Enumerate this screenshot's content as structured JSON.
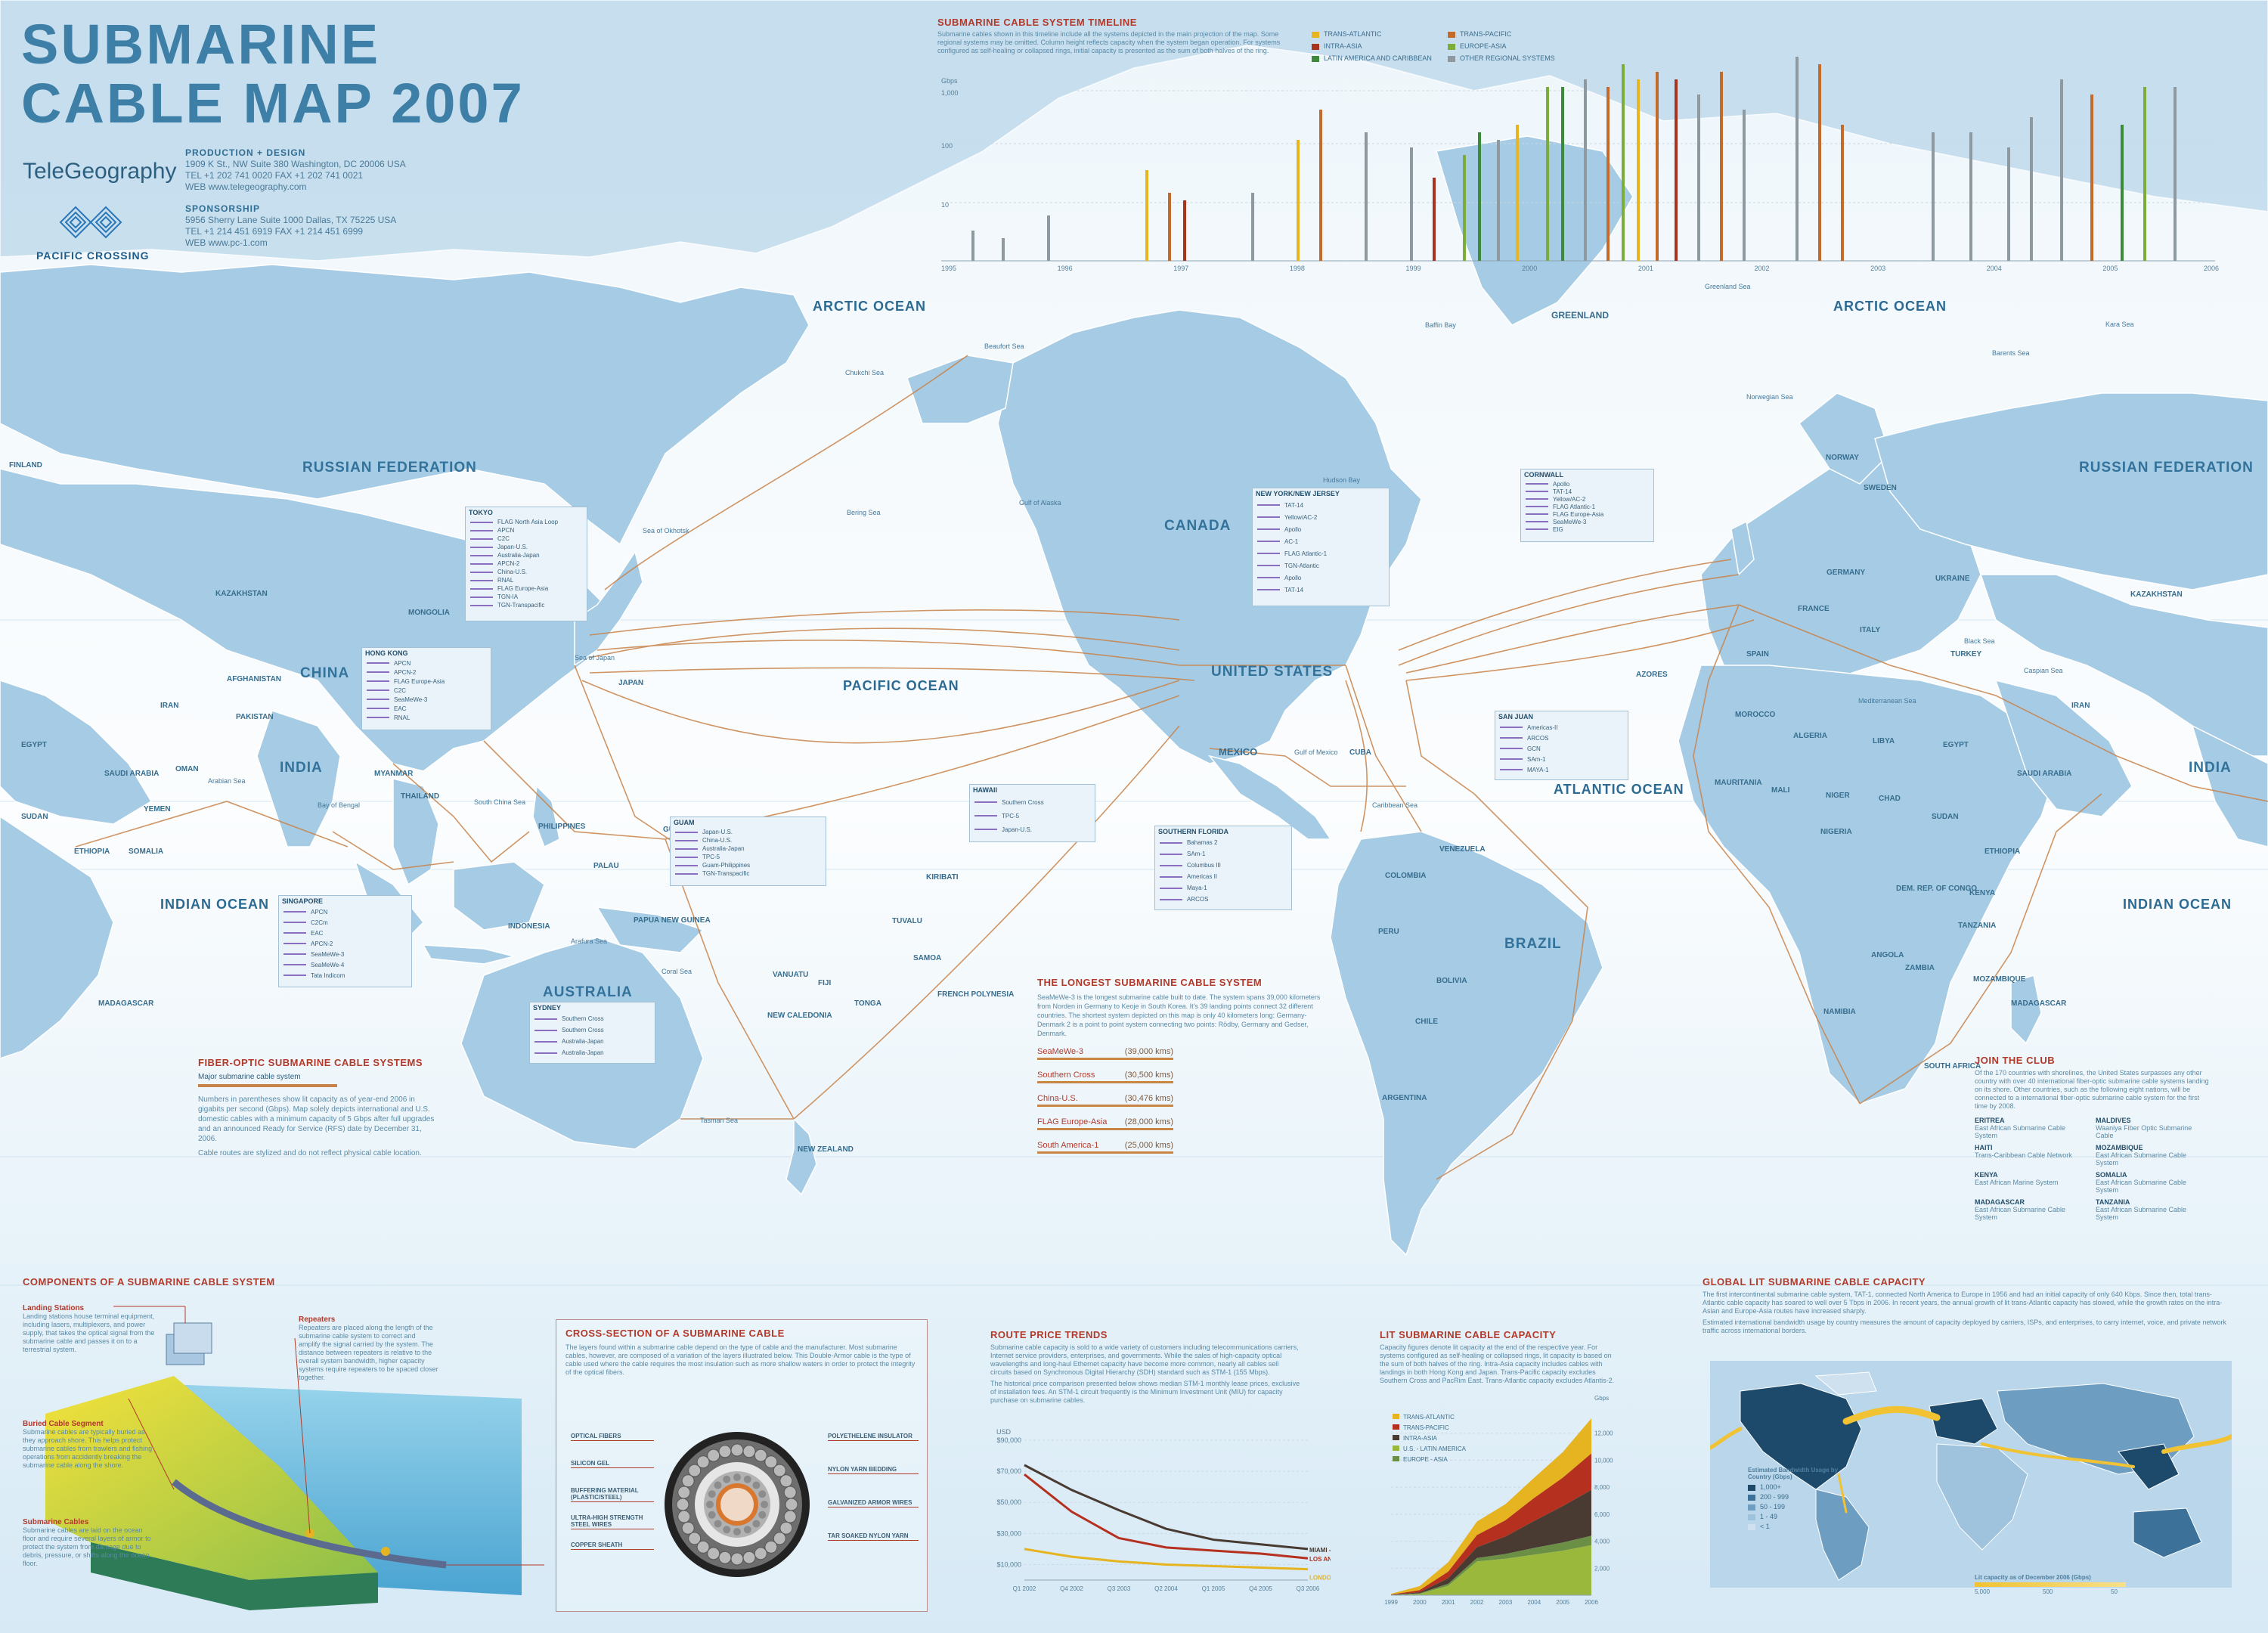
{
  "header": {
    "title_line1": "SUBMARINE",
    "title_line2": "CABLE MAP 2007",
    "brand": "TeleGeography",
    "sponsor": "PACIFIC CROSSING",
    "production_heading": "PRODUCTION + DESIGN",
    "production_address": "1909 K St., NW Suite 380  Washington, DC 20006 USA",
    "production_tel": "TEL +1 202 741 0020   FAX +1 202 741 0021",
    "production_web": "WEB www.telegeography.com",
    "sponsorship_heading": "SPONSORSHIP",
    "sponsorship_address": "5956 Sherry Lane Suite 1000  Dallas, TX 75225 USA",
    "sponsorship_tel": "TEL +1 214 451 6919   FAX +1 214 451 6999",
    "sponsorship_web": "WEB www.pc-1.com"
  },
  "timeline": {
    "title": "SUBMARINE CABLE SYSTEM TIMELINE",
    "desc": "Submarine cables shown in this timeline include all the systems depicted in the main projection of the map. Some regional systems may be omitted. Column height reflects capacity when the system began operation. For systems configured as self-healing or collapsed rings, initial capacity is presented as the sum of both halves of the ring.",
    "legend": [
      {
        "label": "TRANS-ATLANTIC",
        "color": "#e7b51f"
      },
      {
        "label": "TRANS-PACIFIC",
        "color": "#c36a2d"
      },
      {
        "label": "INTRA-ASIA",
        "color": "#a8341f"
      },
      {
        "label": "EUROPE-ASIA",
        "color": "#7cac3a"
      },
      {
        "label": "LATIN AMERICA AND CARIBBEAN",
        "color": "#3d8a3a"
      },
      {
        "label": "OTHER REGIONAL SYSTEMS",
        "color": "#8f9aa0"
      }
    ],
    "y_ticks": [
      "Gbps",
      "1,000",
      "100",
      "10"
    ],
    "years": [
      "1995",
      "1996",
      "1997",
      "1998",
      "1999",
      "2000",
      "2001",
      "2002",
      "2003",
      "2004",
      "2005",
      "2006"
    ]
  },
  "oceans": {
    "arctic_left": "ARCTIC OCEAN",
    "arctic_right": "ARCTIC OCEAN",
    "pacific": "PACIFIC OCEAN",
    "atlantic": "ATLANTIC OCEAN",
    "indian_left": "INDIAN OCEAN",
    "indian_right": "INDIAN OCEAN"
  },
  "countries_big": {
    "russia_left": "RUSSIAN FEDERATION",
    "russia_right": "RUSSIAN FEDERATION",
    "canada": "CANADA",
    "usa": "UNITED STATES",
    "brazil": "BRAZIL",
    "australia": "AUSTRALIA",
    "china": "CHINA",
    "india_left": "INDIA",
    "india_right": "INDIA",
    "greenland": "GREENLAND",
    "mexico": "MEXICO"
  },
  "countries": {
    "kazakhstan_l": "KAZAKHSTAN",
    "mongolia": "MONGOLIA",
    "iran_l": "IRAN",
    "egypt_l": "EGYPT",
    "saudi_l": "SAUDI ARABIA",
    "sudan_l": "SUDAN",
    "ethiopia_l": "ETHIOPIA",
    "madagascar_l": "MADAGASCAR",
    "indonesia": "INDONESIA",
    "new_zealand": "NEW ZEALAND",
    "argentina": "ARGENTINA",
    "peru": "PERU",
    "bolivia": "BOLIVIA",
    "chile": "CHILE",
    "colombia": "COLOMBIA",
    "venezuela": "VENEZUELA",
    "algeria": "ALGERIA",
    "libya": "LIBYA",
    "mali": "MALI",
    "niger": "NIGER",
    "chad": "CHAD",
    "nigeria": "NIGERIA",
    "sudan_r": "SUDAN",
    "ethiopia_r": "ETHIOPIA",
    "angola": "ANGOLA",
    "namibia": "NAMIBIA",
    "south_africa": "SOUTH AFRICA",
    "drc": "DEM. REP. OF CONGO",
    "kazakhstan_r": "KAZAKHSTAN",
    "iran_r": "IRAN",
    "saudi_r": "SAUDI ARABIA",
    "egypt_r": "EGYPT",
    "madagascar_r": "MADAGASCAR",
    "kenya": "KENYA",
    "tanzania": "TANZANIA",
    "mozambique": "MOZAMBIQUE",
    "zambia": "ZAMBIA",
    "morocco": "MOROCCO",
    "mauritania": "MAURITANIA",
    "france": "FRANCE",
    "germany": "GERMANY",
    "spain": "SPAIN",
    "italy": "ITALY",
    "turkey": "TURKEY",
    "ukraine": "UKRAINE",
    "finland": "FINLAND",
    "sweden": "SWEDEN",
    "norway": "NORWAY",
    "japan": "JAPAN",
    "philippines": "PHILIPPINES",
    "papua": "PAPUA NEW GUINEA",
    "thailand": "THAILAND",
    "myanmar": "MYANMAR",
    "pakistan": "PAKISTAN",
    "afghanistan": "AFGHANISTAN",
    "yemen": "YEMEN",
    "oman": "OMAN",
    "somalia": "SOMALIA",
    "cuba": "CUBA",
    "guam": "GUAM",
    "palau": "PALAU",
    "micronesia": "MICRONESIA",
    "kiribati": "KIRIBATI",
    "tuvalu": "TUVALU",
    "samoa": "SAMOA",
    "fiji": "FIJI",
    "tonga": "TONGA",
    "vanuatu": "VANUATU",
    "new_caledonia": "NEW CALEDONIA",
    "french_polynesia": "FRENCH POLYNESIA",
    "azores": "AZORES"
  },
  "seas": {
    "beaufort": "Beaufort Sea",
    "chukchi": "Chukchi Sea",
    "bering": "Bering Sea",
    "okhotsk": "Sea of Okhotsk",
    "japan_sea": "Sea of Japan",
    "alaska_gulf": "Gulf of Alaska",
    "hudson": "Hudson Bay",
    "baffin": "Baffin Bay",
    "greenland_sea": "Greenland Sea",
    "norwegian": "Norwegian Sea",
    "barents": "Barents Sea",
    "kara": "Kara Sea",
    "mexico_gulf": "Gulf of Mexico",
    "caribbean": "Caribbean Sea",
    "mediterranean": "Mediterranean Sea",
    "black": "Black Sea",
    "arabian": "Arabian Sea",
    "bengal": "Bay of Bengal",
    "coral": "Coral Sea",
    "tasman": "Tasman Sea",
    "arafura": "Arafura Sea",
    "south_china": "South China Sea",
    "caspian": "Caspian Sea"
  },
  "insets": {
    "tokyo": {
      "title": "TOKYO",
      "rows": [
        "FLAG North Asia Loop",
        "APCN",
        "C2C",
        "Japan-U.S.",
        "Australia-Japan",
        "APCN-2",
        "China-U.S.",
        "RNAL",
        "FLAG Europe-Asia",
        "TGN-IA",
        "TGN-Transpacific"
      ]
    },
    "hongkong": {
      "title": "HONG KONG",
      "rows": [
        "APCN",
        "APCN-2",
        "FLAG Europe-Asia",
        "C2C",
        "SeaMeWe-3",
        "EAC",
        "RNAL"
      ]
    },
    "singapore": {
      "title": "SINGAPORE",
      "rows": [
        "APCN",
        "C2Cm",
        "EAC",
        "APCN-2",
        "SeaMeWe-3",
        "SeaMeWe-4",
        "Tata Indicom"
      ]
    },
    "guam": {
      "title": "GUAM",
      "rows": [
        "Japan-U.S.",
        "China-U.S.",
        "Australia-Japan",
        "TPC-5",
        "Guam-Philippines",
        "TGN-Transpacific"
      ]
    },
    "hawaii": {
      "title": "HAWAII",
      "rows": [
        "Southern Cross",
        "TPC-5",
        "Japan-U.S."
      ]
    },
    "sydney": {
      "title": "SYDNEY",
      "rows": [
        "Southern Cross",
        "Southern Cross",
        "Australia-Japan",
        "Australia-Japan"
      ]
    },
    "nynj": {
      "title": "NEW YORK/NEW JERSEY",
      "rows": [
        "TAT-14",
        "Yellow/AC-2",
        "Apollo",
        "AC-1",
        "FLAG Atlantic-1",
        "TGN-Atlantic",
        "Apollo",
        "TAT-14"
      ]
    },
    "cornwall": {
      "title": "CORNWALL",
      "rows": [
        "Apollo",
        "TAT-14",
        "Yellow/AC-2",
        "FLAG Atlantic-1",
        "FLAG Europe-Asia",
        "SeaMeWe-3",
        "EIG"
      ]
    },
    "sanjuan": {
      "title": "SAN JUAN",
      "rows": [
        "Americas-II",
        "ARCOS",
        "GCN",
        "SAm-1",
        "MAYA-1"
      ]
    },
    "southflorida": {
      "title": "SOUTHERN FLORIDA",
      "rows": [
        "Bahamas 2",
        "SAm-1",
        "Columbus III",
        "Americas II",
        "Maya-1",
        "ARCOS"
      ]
    }
  },
  "fiber": {
    "title": "FIBER-OPTIC SUBMARINE CABLE SYSTEMS",
    "legend": "Major submarine cable system",
    "body": "Numbers in parentheses show lit capacity as of year-end 2006 in gigabits per second (Gbps). Map solely depicts international and U.S. domestic cables with a minimum capacity of 5 Gbps after full upgrades and an announced Ready for Service (RFS) date by December 31, 2006.",
    "note": "Cable routes are stylized and do not reflect physical cable location."
  },
  "longest": {
    "title": "THE LONGEST SUBMARINE CABLE SYSTEM",
    "body": "SeaMeWe-3 is the longest submarine cable built to date. The system spans 39,000 kilometers from Norden in Germany to Keoje in South Korea. It's 39 landing points connect 32 different countries. The shortest system depicted on this map is only 40 kilometers long: Germany-Denmark 2 is a point to point system connecting two points: Rödby, Germany and Gedser, Denmark.",
    "rows": [
      {
        "name": "SeaMeWe-3",
        "km": "(39,000 kms)"
      },
      {
        "name": "Southern Cross",
        "km": "(30,500 kms)"
      },
      {
        "name": "China-U.S.",
        "km": "(30,476 kms)"
      },
      {
        "name": "FLAG Europe-Asia",
        "km": "(28,000 kms)"
      },
      {
        "name": "South America-1",
        "km": "(25,000 kms)"
      }
    ]
  },
  "club": {
    "title": "JOIN THE CLUB",
    "body": "Of the 170 countries with shorelines, the United States surpasses any other country with over 40 international fiber-optic submarine cable systems landing on its shore. Other countries, such as the following eight nations, will be connected to a international fiber-optic submarine cable system for the first time by 2008.",
    "items": [
      {
        "n": "ERITREA",
        "c": "East African Submarine Cable System"
      },
      {
        "n": "MALDIVES",
        "c": "Waaniya Fiber Optic Submarine Cable"
      },
      {
        "n": "HAITI",
        "c": "Trans-Caribbean Cable Network"
      },
      {
        "n": "MOZAMBIQUE",
        "c": "East African Submarine Cable System"
      },
      {
        "n": "KENYA",
        "c": "East African Marine System"
      },
      {
        "n": "SOMALIA",
        "c": "East African Submarine Cable System"
      },
      {
        "n": "MADAGASCAR",
        "c": "East African Submarine Cable System"
      },
      {
        "n": "TANZANIA",
        "c": "East African Submarine Cable System"
      }
    ]
  },
  "components": {
    "title": "COMPONENTS OF A SUBMARINE CABLE SYSTEM",
    "landing_h": "Landing Stations",
    "landing_b": "Landing stations house terminal equipment, including lasers, multiplexers, and power supply, that takes the optical signal from the submarine cable and passes it on to a terrestrial system.",
    "buried_h": "Buried Cable Segment",
    "buried_b": "Submarine cables are typically buried as they approach shore. This helps protect submarine cables from trawlers and fishing operations from accidently breaking the submarine cable along the shore.",
    "sub_h": "Submarine Cables",
    "sub_b": "Submarine cables are laid on the ocean floor and require several layers of armor to protect the system from damage due to debris, pressure, or shifts along the ocean floor.",
    "rep_h": "Repeaters",
    "rep_b": "Repeaters are placed along the length of the submarine cable system to correct and amplify the signal carried by the system. The distance between repeaters is relative to the overall system bandwidth, higher capacity systems require repeaters to be spaced closer together."
  },
  "cross": {
    "title": "CROSS-SECTION OF A SUBMARINE CABLE",
    "body": "The layers found within a submarine cable depend on the type of cable and the manufacturer. Most submarine cables, however, are composed of a variation of the layers illustrated below. This Double-Armor cable is the type of cable used where the cable requires the most insulation such as more shallow waters in order to protect the integrity of the optical fibers.",
    "left_labels": [
      "OPTICAL FIBERS",
      "SILICON GEL",
      "BUFFERING MATERIAL (PLASTIC/STEEL)",
      "ULTRA-HIGH STRENGTH STEEL WIRES",
      "COPPER SHEATH"
    ],
    "right_labels": [
      "POLYETHELENE INSULATOR",
      "NYLON YARN BEDDING",
      "GALVANIZED ARMOR WIRES",
      "TAR SOAKED NYLON YARN"
    ]
  },
  "route_price": {
    "title": "ROUTE PRICE TRENDS",
    "body": "Submarine cable capacity is sold to a wide variety of customers including telecommunications carriers, Internet service providers, enterprises, and governments. While the sales of high-capacity optical wavelengths and long-haul Ethernet capacity have become more common, nearly all cables sell circuits based on Synchronous Digital Hierarchy (SDH) standard such as STM-1 (155 Mbps).",
    "body2": "The historical price comparison presented below shows median STM-1 monthly lease prices, exclusive of installation fees. An STM-1 circuit frequently is the Minimum Investment Unit (MIU) for capacity purchase on submarine cables.",
    "chart_data": {
      "type": "line",
      "ylabel": "USD",
      "yticks": [
        "$90,000",
        "$70,000",
        "$50,000",
        "$30,000",
        "$10,000"
      ],
      "ylim": [
        0,
        90000
      ],
      "categories": [
        "Q1 2002",
        "Q4 2002",
        "Q3 2003",
        "Q2 2004",
        "Q1 2005",
        "Q4 2005",
        "Q3 2006"
      ],
      "series": [
        {
          "name": "MIAMI - SÃO PAULO",
          "color": "#4a3b32",
          "values": [
            74000,
            58000,
            45000,
            33000,
            26000,
            23000,
            20000
          ]
        },
        {
          "name": "LOS ANGELES - TOKYO",
          "color": "#b5301f",
          "values": [
            68000,
            44000,
            27000,
            21000,
            19000,
            17000,
            14000
          ]
        },
        {
          "name": "LONDON - NEW YORK",
          "color": "#e6b321",
          "values": [
            20000,
            15000,
            12000,
            10000,
            9000,
            8000,
            7000
          ]
        }
      ]
    }
  },
  "lit": {
    "title": "LIT SUBMARINE CABLE CAPACITY",
    "body": "Capacity figures denote lit capacity at the end of the respective year. For systems configured as self-healing or collapsed rings, lit capacity is based on the sum of both halves of the ring. Intra-Asia capacity includes cables with landings in both Hong Kong and Japan. Trans-Pacific capacity excludes Southern Cross and PacRim East. Trans-Atlantic capacity excludes Atlantis-2.",
    "chart_data": {
      "type": "area",
      "ylabel": "Gbps",
      "yticks": [
        "12,000",
        "10,000",
        "8,000",
        "6,000",
        "4,000",
        "2,000"
      ],
      "ylim": [
        0,
        14000
      ],
      "categories": [
        "1999",
        "2000",
        "2001",
        "2002",
        "2003",
        "2004",
        "2005",
        "2006"
      ],
      "series": [
        {
          "name": "TRANS-ATLANTIC",
          "color": "#e6b321",
          "values": [
            60,
            300,
            700,
            1000,
            1200,
            1500,
            1900,
            2600
          ]
        },
        {
          "name": "TRANS-PACIFIC",
          "color": "#b5301f",
          "values": [
            20,
            150,
            500,
            900,
            1200,
            1700,
            2100,
            2700
          ]
        },
        {
          "name": "INTRA-ASIA",
          "color": "#4a3b32",
          "values": [
            10,
            80,
            400,
            800,
            1300,
            2000,
            2700,
            3400
          ]
        },
        {
          "name": "U.S. - LATIN AMERICA",
          "color": "#9ab83c",
          "values": [
            10,
            100,
            700,
            2500,
            2700,
            3000,
            3300,
            3700
          ]
        },
        {
          "name": "EUROPE - ASIA",
          "color": "#6a8f45",
          "values": [
            5,
            40,
            150,
            250,
            350,
            500,
            600,
            700
          ]
        }
      ]
    }
  },
  "global": {
    "title": "GLOBAL LIT SUBMARINE CABLE CAPACITY",
    "body": "The first intercontinental submarine cable system, TAT-1, connected North America to Europe in 1956 and had an initial capacity of only 640 Kbps. Since then, total trans-Atlantic cable capacity has soared to well over 5 Tbps in 2006. In recent years, the annual growth of lit trans-Atlantic capacity has slowed, while the growth rates on the intra-Asian and Europe-Asia routes have increased sharply.",
    "body2": "Estimated international bandwidth usage by country measures the amount of capacity deployed by carriers, ISPs, and enterprises, to carry internet, voice, and private network traffic across international borders.",
    "legend_title": "Estimated Bandwidth Usage by Country (Gbps)",
    "legend": [
      {
        "label": "1,000+",
        "color": "#1d4a6b"
      },
      {
        "label": "200 - 999",
        "color": "#3c719a"
      },
      {
        "label": "50 - 199",
        "color": "#6d9ec2"
      },
      {
        "label": "1 - 49",
        "color": "#9fc3dc"
      },
      {
        "label": "< 1",
        "color": "#cfe1ee"
      }
    ],
    "scale_title": "Lit capacity as of December 2006 (Gbps)",
    "scale_ticks": [
      "5,000",
      "500",
      "50"
    ]
  },
  "colors": {
    "cable": "#c8834a",
    "land": "#a6cbe4",
    "water": "#dfeef8",
    "accent": "#b23a2b"
  }
}
